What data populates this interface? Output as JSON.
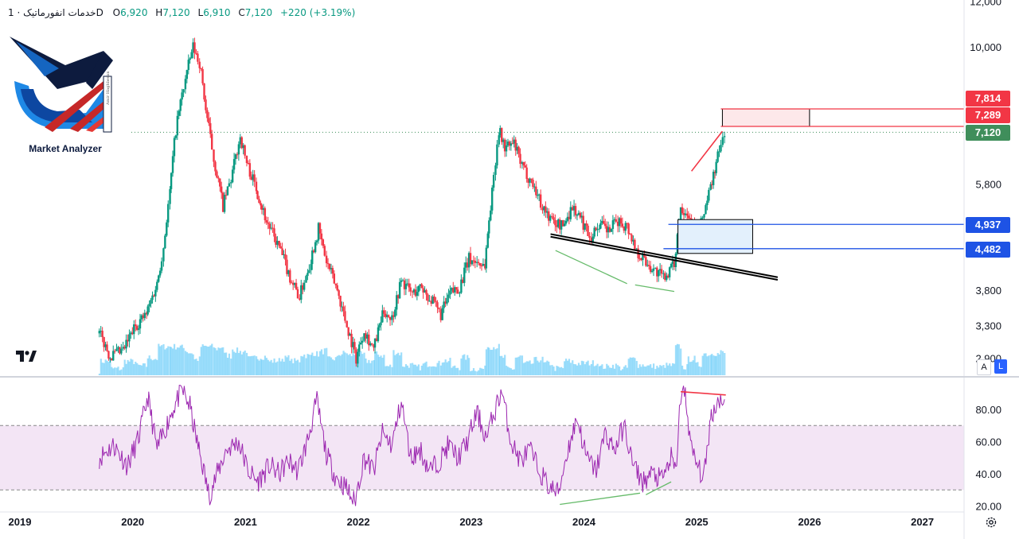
{
  "legend": {
    "symbol": "خدمات انفورماتیک",
    "separator": "·",
    "interval": "1D",
    "open_label": "O",
    "open": "6,920",
    "high_label": "H",
    "high": "7,120",
    "low_label": "L",
    "low": "6,910",
    "close_label": "C",
    "close": "7,120",
    "change": "+220 (+3.19%)"
  },
  "logo": {
    "text": "Market Analyzer",
    "subtext": "Amir Haghbesan"
  },
  "axis_buttons": {
    "auto": "A",
    "log": "L"
  },
  "colors": {
    "up": "#089981",
    "down": "#f23645",
    "rsi_line": "#9c27b0",
    "rsi_band": "#f3e5f5",
    "volume": "#4fc3f7",
    "blue_box": "#1e53e5",
    "red_box": "#f23645",
    "close_tag": "#3f8e5b"
  },
  "chart_data": [
    {
      "type": "candlestick",
      "scale": "log",
      "y_ticks": [
        {
          "value": 12000,
          "label": "12,000"
        },
        {
          "value": 10000,
          "label": "10,000"
        },
        {
          "value": 5800,
          "label": "5,800"
        },
        {
          "value": 3800,
          "label": "3,800"
        },
        {
          "value": 3300,
          "label": "3,300"
        },
        {
          "value": 2900,
          "label": "2,900"
        }
      ],
      "x_ticks": [
        "2019",
        "2020",
        "2021",
        "2022",
        "2023",
        "2024",
        "2025",
        "2026",
        "2027"
      ],
      "path": [
        [
          "2019-09-15",
          3200
        ],
        [
          "2019-10-20",
          2920
        ],
        [
          "2019-12-01",
          2980
        ],
        [
          "2020-01-10",
          3300
        ],
        [
          "2020-02-15",
          3450
        ],
        [
          "2020-03-20",
          3900
        ],
        [
          "2020-04-10",
          4500
        ],
        [
          "2020-05-01",
          5600
        ],
        [
          "2020-05-20",
          7200
        ],
        [
          "2020-06-20",
          8800
        ],
        [
          "2020-07-15",
          10000
        ],
        [
          "2020-08-05",
          9400
        ],
        [
          "2020-08-25",
          7800
        ],
        [
          "2020-09-20",
          6400
        ],
        [
          "2020-10-20",
          5300
        ],
        [
          "2020-11-15",
          5900
        ],
        [
          "2020-12-15",
          7000
        ],
        [
          "2021-01-05",
          6300
        ],
        [
          "2021-02-05",
          5700
        ],
        [
          "2021-03-10",
          5000
        ],
        [
          "2021-04-20",
          4500
        ],
        [
          "2021-05-25",
          4000
        ],
        [
          "2021-06-25",
          3700
        ],
        [
          "2021-08-01",
          4300
        ],
        [
          "2021-08-25",
          4850
        ],
        [
          "2021-09-20",
          4250
        ],
        [
          "2021-10-25",
          3800
        ],
        [
          "2021-11-25",
          3300
        ],
        [
          "2021-12-25",
          2900
        ],
        [
          "2022-01-20",
          3250
        ],
        [
          "2022-02-20",
          3000
        ],
        [
          "2022-03-25",
          3500
        ],
        [
          "2022-04-20",
          3400
        ],
        [
          "2022-05-20",
          3950
        ],
        [
          "2022-06-25",
          3750
        ],
        [
          "2022-07-25",
          3850
        ],
        [
          "2022-08-25",
          3650
        ],
        [
          "2022-09-25",
          3450
        ],
        [
          "2022-10-25",
          3750
        ],
        [
          "2022-11-25",
          3850
        ],
        [
          "2022-12-25",
          4300
        ],
        [
          "2023-02-15",
          4200
        ],
        [
          "2023-03-10",
          5600
        ],
        [
          "2023-04-01",
          7200
        ],
        [
          "2023-04-20",
          6700
        ],
        [
          "2023-05-20",
          6800
        ],
        [
          "2023-06-15",
          6200
        ],
        [
          "2023-07-20",
          5800
        ],
        [
          "2023-08-20",
          5300
        ],
        [
          "2023-09-20",
          5000
        ],
        [
          "2023-10-25",
          4900
        ],
        [
          "2023-11-25",
          5300
        ],
        [
          "2023-12-25",
          5000
        ],
        [
          "2024-01-25",
          4700
        ],
        [
          "2024-02-20",
          4950
        ],
        [
          "2024-03-20",
          4800
        ],
        [
          "2024-04-20",
          5000
        ],
        [
          "2024-05-20",
          4900
        ],
        [
          "2024-06-20",
          4450
        ],
        [
          "2024-07-20",
          4250
        ],
        [
          "2024-08-20",
          4100
        ],
        [
          "2024-09-15",
          4000
        ],
        [
          "2024-10-20",
          4200
        ],
        [
          "2024-11-10",
          5300
        ],
        [
          "2024-12-01",
          5200
        ],
        [
          "2024-12-25",
          4800
        ],
        [
          "2025-01-15",
          4950
        ],
        [
          "2025-02-15",
          5700
        ],
        [
          "2025-03-15",
          6600
        ],
        [
          "2025-04-01",
          7120
        ]
      ]
    },
    {
      "type": "line",
      "name": "RSI",
      "ylim": [
        20,
        95
      ],
      "y_ticks": [
        {
          "value": 80,
          "label": "80.00"
        },
        {
          "value": 60,
          "label": "60.00"
        },
        {
          "value": 40,
          "label": "40.00"
        },
        {
          "value": 20,
          "label": "20.00"
        }
      ],
      "bands": [
        70,
        30
      ],
      "path": [
        [
          "2019-09-15",
          50
        ],
        [
          "2019-11-01",
          58
        ],
        [
          "2019-12-15",
          45
        ],
        [
          "2020-01-20",
          62
        ],
        [
          "2020-02-20",
          88
        ],
        [
          "2020-03-20",
          55
        ],
        [
          "2020-04-20",
          70
        ],
        [
          "2020-05-10",
          80
        ],
        [
          "2020-06-10",
          92
        ],
        [
          "2020-07-05",
          82
        ],
        [
          "2020-07-25",
          62
        ],
        [
          "2020-08-15",
          45
        ],
        [
          "2020-09-05",
          26
        ],
        [
          "2020-10-01",
          40
        ],
        [
          "2020-11-01",
          55
        ],
        [
          "2020-12-10",
          60
        ],
        [
          "2021-01-10",
          42
        ],
        [
          "2021-02-10",
          35
        ],
        [
          "2021-03-20",
          45
        ],
        [
          "2021-04-20",
          40
        ],
        [
          "2021-05-20",
          48
        ],
        [
          "2021-06-20",
          42
        ],
        [
          "2021-07-20",
          60
        ],
        [
          "2021-08-20",
          85
        ],
        [
          "2021-09-20",
          52
        ],
        [
          "2021-10-20",
          38
        ],
        [
          "2021-11-20",
          32
        ],
        [
          "2021-12-20",
          22
        ],
        [
          "2022-01-20",
          50
        ],
        [
          "2022-02-20",
          42
        ],
        [
          "2022-03-20",
          65
        ],
        [
          "2022-04-20",
          58
        ],
        [
          "2022-05-20",
          85
        ],
        [
          "2022-06-20",
          50
        ],
        [
          "2022-07-20",
          55
        ],
        [
          "2022-08-20",
          42
        ],
        [
          "2022-09-20",
          48
        ],
        [
          "2022-10-20",
          58
        ],
        [
          "2022-11-20",
          50
        ],
        [
          "2022-12-20",
          60
        ],
        [
          "2023-01-20",
          78
        ],
        [
          "2023-02-20",
          62
        ],
        [
          "2023-03-20",
          80
        ],
        [
          "2023-04-10",
          92
        ],
        [
          "2023-05-10",
          60
        ],
        [
          "2023-06-10",
          48
        ],
        [
          "2023-07-10",
          55
        ],
        [
          "2023-08-10",
          42
        ],
        [
          "2023-09-10",
          32
        ],
        [
          "2023-10-10",
          28
        ],
        [
          "2023-11-10",
          55
        ],
        [
          "2023-12-10",
          75
        ],
        [
          "2024-01-10",
          50
        ],
        [
          "2024-02-10",
          42
        ],
        [
          "2024-03-10",
          65
        ],
        [
          "2024-04-10",
          55
        ],
        [
          "2024-05-10",
          70
        ],
        [
          "2024-06-10",
          45
        ],
        [
          "2024-07-10",
          35
        ],
        [
          "2024-08-10",
          40
        ],
        [
          "2024-09-10",
          36
        ],
        [
          "2024-10-10",
          50
        ],
        [
          "2024-10-25",
          40
        ],
        [
          "2024-11-10",
          88
        ],
        [
          "2024-11-25",
          90
        ],
        [
          "2024-12-15",
          55
        ],
        [
          "2025-01-10",
          42
        ],
        [
          "2025-01-25",
          38
        ],
        [
          "2025-02-15",
          75
        ],
        [
          "2025-03-10",
          85
        ],
        [
          "2025-03-25",
          88
        ],
        [
          "2025-04-01",
          82
        ]
      ]
    }
  ],
  "zones": {
    "resistance_high": {
      "value": 7814,
      "label": "7,814"
    },
    "resistance_low": {
      "value": 7289,
      "label": "7,289"
    },
    "last_close": {
      "value": 7120,
      "label": "7,120"
    },
    "support_high": {
      "value": 4937,
      "label": "4,937"
    },
    "support_low": {
      "value": 4482,
      "label": "4,482"
    }
  }
}
